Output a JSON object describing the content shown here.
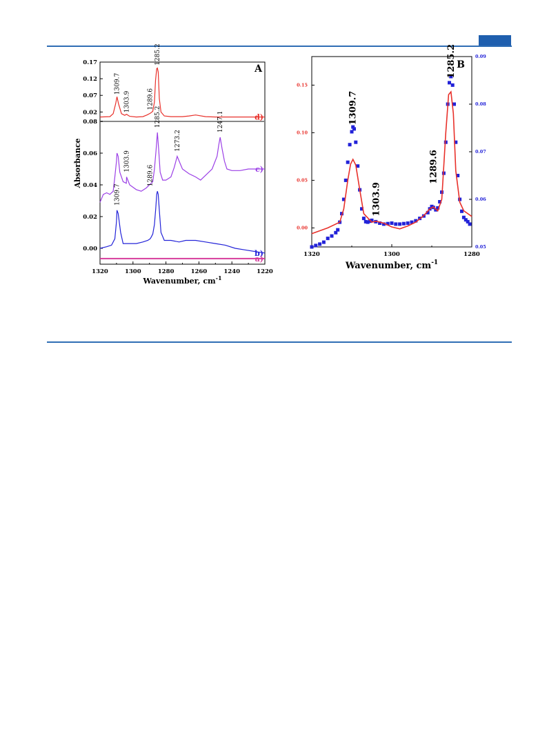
{
  "chart_data": [
    {
      "type": "line",
      "panel_label": "A",
      "xlabel": "Wavenumber, cm",
      "xlabel_sup": "-1",
      "ylabel": "Absorbance",
      "xlim": [
        1320,
        1220
      ],
      "x_ticks": [
        "1320",
        "1300",
        "1280",
        "1260",
        "1240",
        "1220"
      ],
      "upper_ylim": [
        0.0,
        0.17
      ],
      "upper_y_ticks": [
        "0.17",
        "0.12",
        "0.07",
        "0.02"
      ],
      "lower_ylim": [
        -0.01,
        0.08
      ],
      "lower_y_ticks": [
        "0.08",
        "0.06",
        "0.04",
        "0.02",
        "0.00"
      ],
      "series": [
        {
          "name": "d)",
          "color": "#e8302a",
          "panel": "upper",
          "x": [
            1320,
            1314,
            1312,
            1310.5,
            1309.7,
            1308.8,
            1307,
            1305,
            1303.9,
            1302,
            1298,
            1294,
            1291.5,
            1289.6,
            1288,
            1287,
            1286.3,
            1285.6,
            1285.2,
            1284.7,
            1284,
            1283,
            1281,
            1277,
            1270,
            1266,
            1262,
            1256,
            1250,
            1240,
            1230,
            1220
          ],
          "values": [
            0.005,
            0.006,
            0.015,
            0.045,
            0.066,
            0.045,
            0.015,
            0.01,
            0.013,
            0.007,
            0.005,
            0.006,
            0.011,
            0.016,
            0.022,
            0.05,
            0.115,
            0.15,
            0.152,
            0.14,
            0.06,
            0.02,
            0.008,
            0.006,
            0.006,
            0.008,
            0.011,
            0.006,
            0.005,
            0.005,
            0.005,
            0.005
          ]
        },
        {
          "name": "c)",
          "color": "#9b3fe6",
          "panel": "lower",
          "x": [
            1320,
            1318,
            1316,
            1314,
            1312,
            1311,
            1310,
            1309.7,
            1309,
            1308,
            1306,
            1304,
            1303.9,
            1302,
            1298,
            1295,
            1292,
            1290,
            1288,
            1287,
            1286,
            1285.2,
            1284.4,
            1283.5,
            1282,
            1280,
            1277,
            1275,
            1273.2,
            1272,
            1270,
            1266,
            1262,
            1259,
            1256,
            1252,
            1249,
            1248,
            1247.1,
            1246,
            1244.5,
            1243,
            1240,
            1235,
            1230,
            1225,
            1220
          ],
          "values": [
            0.029,
            0.034,
            0.035,
            0.034,
            0.036,
            0.045,
            0.055,
            0.06,
            0.058,
            0.048,
            0.042,
            0.041,
            0.045,
            0.04,
            0.037,
            0.036,
            0.038,
            0.04,
            0.042,
            0.05,
            0.062,
            0.073,
            0.062,
            0.048,
            0.043,
            0.043,
            0.045,
            0.051,
            0.058,
            0.055,
            0.05,
            0.047,
            0.045,
            0.043,
            0.046,
            0.05,
            0.058,
            0.065,
            0.07,
            0.063,
            0.055,
            0.05,
            0.049,
            0.049,
            0.05,
            0.05,
            0.05
          ]
        },
        {
          "name": "b)",
          "color": "#2222d8",
          "panel": "lower",
          "x": [
            1320,
            1316,
            1313,
            1311,
            1310,
            1309.7,
            1309,
            1307.5,
            1306,
            1303,
            1298,
            1294,
            1291,
            1289.6,
            1289,
            1288,
            1287,
            1286.2,
            1285.6,
            1285.2,
            1284.7,
            1284,
            1283,
            1281,
            1277,
            1272,
            1268,
            1262,
            1256,
            1250,
            1244,
            1238,
            1232,
            1226,
            1220
          ],
          "values": [
            0.0,
            0.001,
            0.002,
            0.006,
            0.017,
            0.024,
            0.022,
            0.01,
            0.003,
            0.003,
            0.003,
            0.004,
            0.005,
            0.006,
            0.007,
            0.009,
            0.015,
            0.025,
            0.034,
            0.036,
            0.034,
            0.024,
            0.01,
            0.005,
            0.005,
            0.004,
            0.005,
            0.005,
            0.004,
            0.003,
            0.002,
            0.0,
            -0.001,
            -0.002,
            -0.003
          ]
        },
        {
          "name": "a)",
          "color": "#d63a9b",
          "panel": "lower",
          "x": [
            1320,
            1220
          ],
          "values": [
            -0.0065,
            -0.0065
          ]
        }
      ],
      "peak_labels": [
        {
          "panel": "upper",
          "text": "1309.7",
          "x": 1309.7,
          "y": 0.072
        },
        {
          "panel": "upper",
          "text": "1303.9",
          "x": 1303.9,
          "y": 0.018
        },
        {
          "panel": "upper",
          "text": "1289.6",
          "x": 1289.6,
          "y": 0.026
        },
        {
          "panel": "upper",
          "text": "1285.2",
          "x": 1285.2,
          "y": 0.16
        },
        {
          "panel": "lower",
          "text": "1285.2",
          "x": 1285.2,
          "y": 0.076
        },
        {
          "panel": "lower",
          "text": "1273.2",
          "x": 1273.2,
          "y": 0.061
        },
        {
          "panel": "lower",
          "text": "1247.1",
          "x": 1247.1,
          "y": 0.073
        },
        {
          "panel": "lower",
          "text": "1303.9",
          "x": 1303.9,
          "y": 0.048
        },
        {
          "panel": "lower",
          "text": "1309.7",
          "x": 1309.7,
          "y": 0.027
        },
        {
          "panel": "lower",
          "text": "1289.6",
          "x": 1289.6,
          "y": 0.039
        }
      ]
    },
    {
      "type": "line",
      "panel_label": "B",
      "xlabel": "Wavenumber, cm",
      "xlabel_sup": "-1",
      "xlim": [
        1320,
        1280
      ],
      "x_ticks": [
        "1320",
        "1300",
        "1280"
      ],
      "y_left": {
        "lim": [
          -0.02,
          0.18
        ],
        "ticks": [
          "0.15",
          "0.10",
          "0.05",
          "0.00"
        ],
        "color": "#e8302a"
      },
      "y_right": {
        "lim": [
          0.05,
          0.09
        ],
        "ticks": [
          "0.09",
          "0.08",
          "0.07",
          "0.06",
          "0.05"
        ],
        "color": "#2222d8"
      },
      "series": [
        {
          "name": "",
          "color": "#e8302a",
          "axis": "left",
          "style": "line",
          "x": [
            1320,
            1316,
            1313,
            1312,
            1311,
            1310.3,
            1309.7,
            1309,
            1308,
            1307,
            1305,
            1303.9,
            1302,
            1300,
            1298,
            1296,
            1294,
            1292,
            1290.5,
            1289.6,
            1288.5,
            1287.5,
            1286.5,
            1285.8,
            1285.2,
            1284.6,
            1284,
            1283,
            1282,
            1281,
            1280
          ],
          "values": [
            -0.006,
            0.0,
            0.006,
            0.02,
            0.05,
            0.067,
            0.072,
            0.066,
            0.04,
            0.015,
            0.006,
            0.007,
            0.005,
            0.001,
            -0.001,
            0.002,
            0.006,
            0.013,
            0.02,
            0.022,
            0.018,
            0.03,
            0.1,
            0.14,
            0.143,
            0.12,
            0.06,
            0.027,
            0.018,
            0.015,
            0.012
          ]
        },
        {
          "name": "",
          "color": "#2222d8",
          "axis": "right",
          "style": "markers",
          "x": [
            1320,
            1319,
            1318,
            1317,
            1316,
            1315,
            1314,
            1313.5,
            1313,
            1312.5,
            1312,
            1311.5,
            1311,
            1310.5,
            1310,
            1309.7,
            1309.4,
            1309,
            1308.5,
            1308,
            1307.5,
            1307,
            1306.5,
            1306,
            1305.5,
            1305,
            1304,
            1303,
            1302,
            1301,
            1300,
            1299,
            1298,
            1297,
            1296,
            1295,
            1294,
            1293,
            1292,
            1291,
            1290.5,
            1290,
            1289.6,
            1289,
            1288.5,
            1288,
            1287.5,
            1287,
            1286.5,
            1286,
            1285.6,
            1285.2,
            1284.8,
            1284.4,
            1284,
            1283.5,
            1283,
            1282.5,
            1282,
            1281.5,
            1281,
            1280.5
          ],
          "values": [
            0.05,
            0.0503,
            0.0506,
            0.051,
            0.0518,
            0.0523,
            0.053,
            0.0536,
            0.0552,
            0.057,
            0.06,
            0.064,
            0.0678,
            0.0715,
            0.0742,
            0.0752,
            0.0748,
            0.072,
            0.067,
            0.062,
            0.058,
            0.056,
            0.0553,
            0.0552,
            0.0554,
            0.0556,
            0.0553,
            0.055,
            0.0548,
            0.0549,
            0.055,
            0.0548,
            0.0548,
            0.0549,
            0.055,
            0.0552,
            0.0555,
            0.056,
            0.0565,
            0.0572,
            0.058,
            0.0585,
            0.0583,
            0.0578,
            0.0582,
            0.0595,
            0.0615,
            0.0655,
            0.072,
            0.08,
            0.0845,
            0.0858,
            0.084,
            0.08,
            0.072,
            0.065,
            0.06,
            0.0575,
            0.0562,
            0.0557,
            0.0553,
            0.0548
          ]
        }
      ],
      "peak_labels": [
        {
          "text": "1309.7",
          "x": 1309.7,
          "y": 0.108
        },
        {
          "text": "1303.9",
          "x": 1303.9,
          "y": 0.012
        },
        {
          "text": "1289.6",
          "x": 1289.6,
          "y": 0.046
        },
        {
          "text": "1285.2",
          "x": 1285.2,
          "y": 0.157
        }
      ]
    }
  ]
}
